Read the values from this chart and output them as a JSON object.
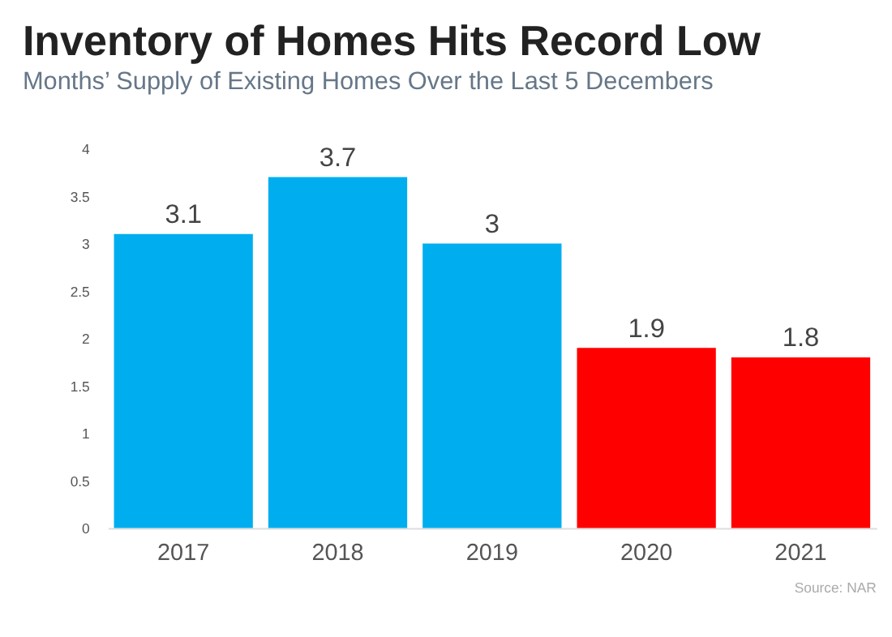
{
  "chart_data": {
    "type": "bar",
    "title": "Inventory of Homes Hits Record Low",
    "subtitle": "Months’ Supply of Existing Homes Over the Last 5 Decembers",
    "categories": [
      "2017",
      "2018",
      "2019",
      "2020",
      "2021"
    ],
    "values": [
      3.1,
      3.7,
      3,
      1.9,
      1.8
    ],
    "colors": [
      "#00aeef",
      "#00aeef",
      "#00aeef",
      "#ff0000",
      "#ff0000"
    ],
    "ylim": [
      0,
      4
    ],
    "yticks": [
      0,
      0.5,
      1,
      1.5,
      2,
      2.5,
      3,
      3.5,
      4
    ],
    "grid": false,
    "data_labels": true,
    "annotations": [
      "Source: NAR"
    ]
  }
}
